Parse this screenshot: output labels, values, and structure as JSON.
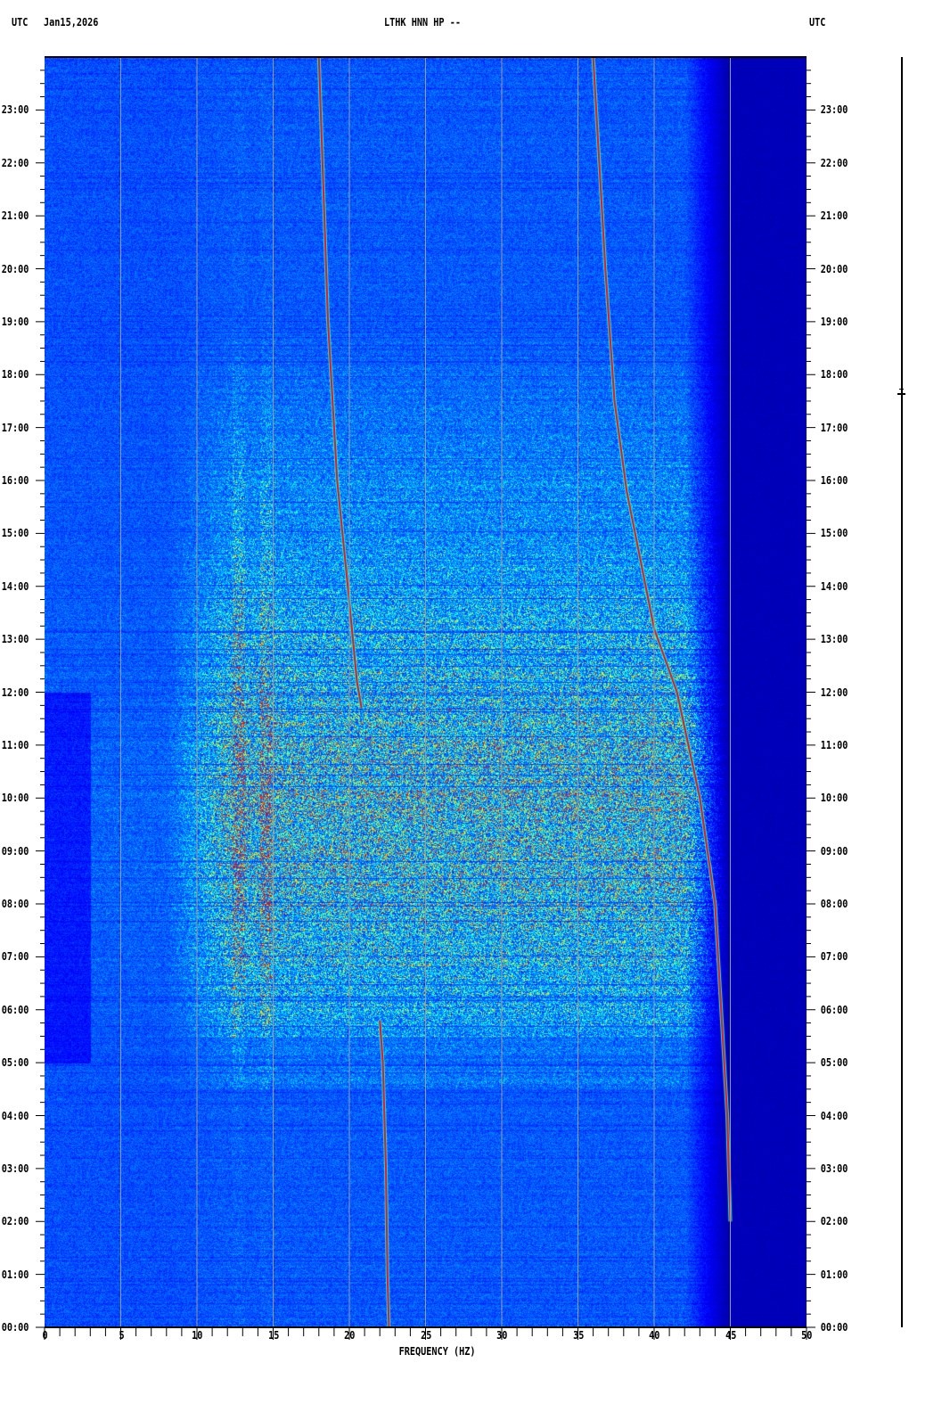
{
  "header": {
    "left_tz": "UTC",
    "date": "Jan15,2026",
    "station": "LTHK HNN HP --",
    "right_tz": "UTC"
  },
  "chart_data": {
    "type": "heatmap",
    "subtype": "spectrogram",
    "title": "LTHK HNN HP --",
    "xlabel": "FREQUENCY (HZ)",
    "ylabel": "",
    "xlim": [
      0,
      50
    ],
    "ylim_hours": [
      0,
      24
    ],
    "x_major_ticks": [
      0,
      5,
      10,
      15,
      20,
      25,
      30,
      35,
      40,
      45,
      50
    ],
    "x_minor_step": 1,
    "y_tick_labels": [
      "00:00",
      "01:00",
      "02:00",
      "03:00",
      "04:00",
      "05:00",
      "06:00",
      "07:00",
      "08:00",
      "09:00",
      "10:00",
      "11:00",
      "12:00",
      "13:00",
      "14:00",
      "15:00",
      "16:00",
      "17:00",
      "18:00",
      "19:00",
      "20:00",
      "21:00",
      "22:00",
      "23:00"
    ],
    "y_minor_step_minutes": 15,
    "grid": "vertical lines every 5 Hz",
    "colormap": [
      "#00007f",
      "#0000ff",
      "#0080ff",
      "#00ffff",
      "#80ff80",
      "#ffff00",
      "#ff8000",
      "#ff0000"
    ],
    "tonal_tracks": [
      {
        "points": [
          [
            18.0,
            24.0
          ],
          [
            18.6,
            19.0
          ],
          [
            19.2,
            16.0
          ],
          [
            19.9,
            14.0
          ],
          [
            20.5,
            12.2
          ],
          [
            20.8,
            11.7
          ]
        ]
      },
      {
        "points": [
          [
            36.0,
            24.0
          ],
          [
            36.8,
            20.0
          ],
          [
            37.4,
            17.5
          ],
          [
            38.2,
            15.8
          ],
          [
            40.0,
            13.2
          ],
          [
            41.5,
            12.0
          ],
          [
            43.0,
            10.0
          ],
          [
            44.0,
            8.0
          ],
          [
            44.8,
            4.0
          ],
          [
            45.0,
            2.0
          ]
        ]
      },
      {
        "points": [
          [
            22.0,
            5.8
          ],
          [
            22.2,
            5.0
          ],
          [
            22.4,
            3.0
          ],
          [
            22.5,
            1.0
          ],
          [
            22.6,
            0.0
          ]
        ]
      }
    ],
    "high_energy_period_hours": [
      5.5,
      14.0
    ],
    "high_energy_band_hz": [
      10,
      42
    ]
  }
}
